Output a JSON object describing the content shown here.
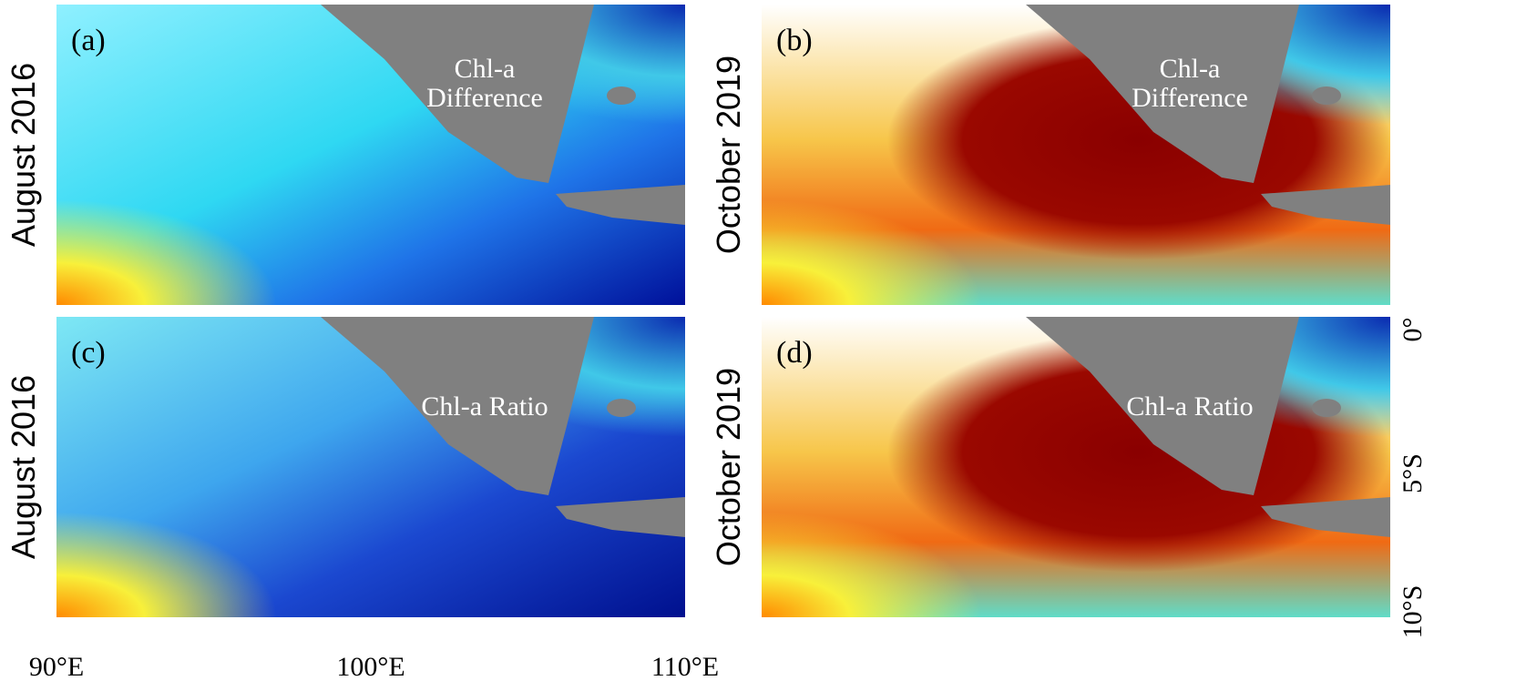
{
  "panels": [
    {
      "label": "(a)",
      "annotation": [
        "Chl-a",
        "Difference"
      ],
      "row_label": "August 2016"
    },
    {
      "label": "(b)",
      "annotation": [
        "Chl-a",
        "Difference"
      ],
      "row_label": "October 2019"
    },
    {
      "label": "(c)",
      "annotation": [
        "Chl-a Ratio"
      ],
      "row_label": "August 2016"
    },
    {
      "label": "(d)",
      "annotation": [
        "Chl-a Ratio"
      ],
      "row_label": "October 2019"
    }
  ],
  "x_axis": {
    "labels": [
      "90°E",
      "100°E",
      "110°E"
    ]
  },
  "y_axis": {
    "labels": [
      "0°",
      "5°S",
      "10°S"
    ]
  }
}
